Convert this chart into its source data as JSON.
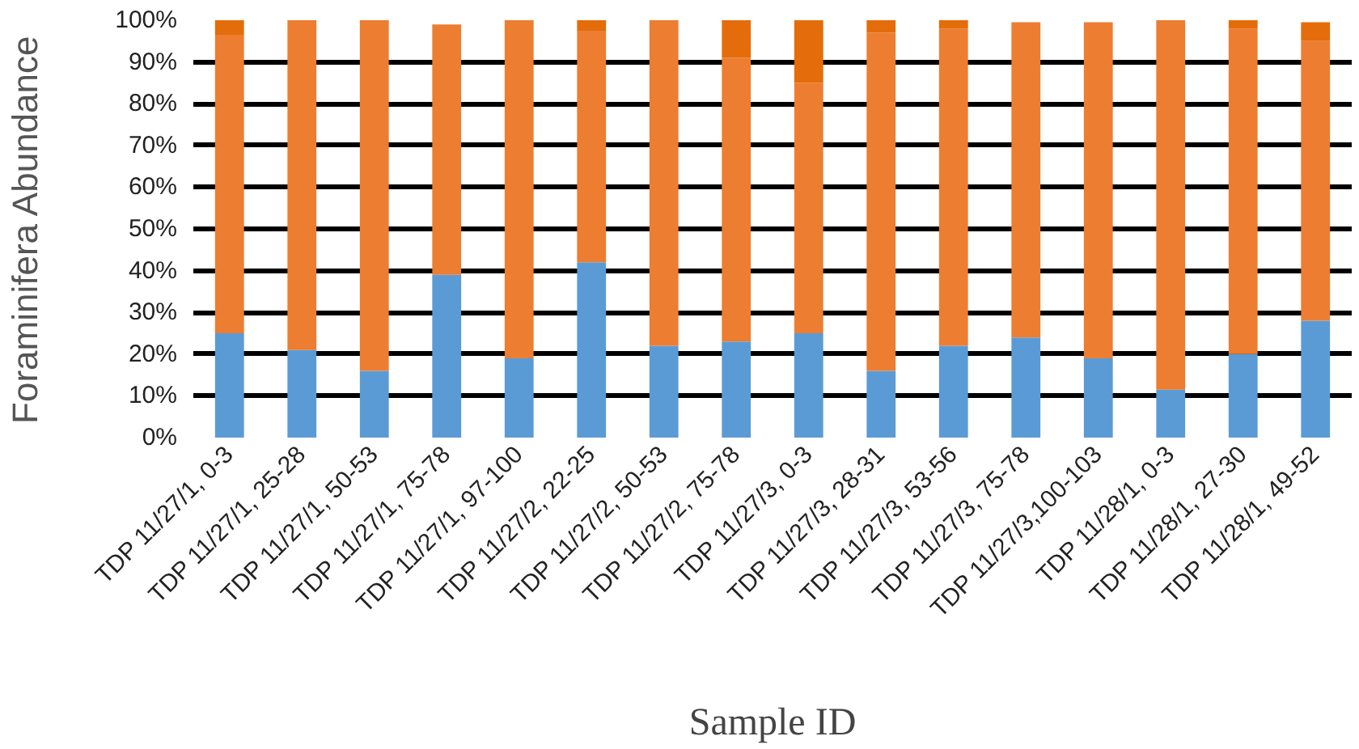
{
  "chart_data": {
    "type": "bar",
    "stacked": true,
    "xlabel": "Sample ID",
    "ylabel": "Foraminifera Abundance",
    "categories": [
      "TDP 11/27/1, 0-3",
      "TDP 11/27/1, 25-28",
      "TDP 11/27/1, 50-53",
      "TDP 11/27/1, 75-78",
      "TDP 11/27/1, 97-100",
      "TDP 11/27/2, 22-25",
      "TDP 11/27/2, 50-53",
      "TDP 11/27/2, 75-78",
      "TDP 11/27/3, 0-3",
      "TDP 11/27/3, 28-31",
      "TDP 11/27/3, 53-56",
      "TDP 11/27/3, 75-78",
      "TDP 11/27/3,100-103",
      "TDP 11/28/1, 0-3",
      "TDP 11/28/1, 27-30",
      "TDP 11/28/1, 49-52"
    ],
    "series": [
      {
        "color": "#5b9bd5",
        "values": [
          25,
          21,
          16,
          39,
          19,
          42,
          22,
          23,
          25,
          16,
          22,
          24,
          19,
          11.5,
          20,
          28
        ]
      },
      {
        "color": "#ed7d31",
        "values": [
          71.5,
          79,
          84,
          60,
          81,
          55.5,
          78,
          68,
          60,
          81,
          76,
          75.5,
          80.5,
          88.5,
          78,
          67
        ]
      },
      {
        "color": "#e46c0a",
        "values": [
          3.5,
          0,
          0,
          0,
          0,
          2.5,
          0,
          9,
          15,
          3,
          2,
          0,
          0,
          0,
          2,
          4.5
        ]
      }
    ],
    "ylim": [
      0,
      100
    ],
    "yticks": [
      {
        "value": 0,
        "label": "0%"
      },
      {
        "value": 10,
        "label": "10%"
      },
      {
        "value": 20,
        "label": "20%"
      },
      {
        "value": 30,
        "label": "30%"
      },
      {
        "value": 40,
        "label": "40%"
      },
      {
        "value": 50,
        "label": "50%"
      },
      {
        "value": 60,
        "label": "60%"
      },
      {
        "value": 70,
        "label": "70%"
      },
      {
        "value": 80,
        "label": "80%"
      },
      {
        "value": 90,
        "label": "90%"
      },
      {
        "value": 100,
        "label": "100%"
      }
    ],
    "grid": "y"
  }
}
